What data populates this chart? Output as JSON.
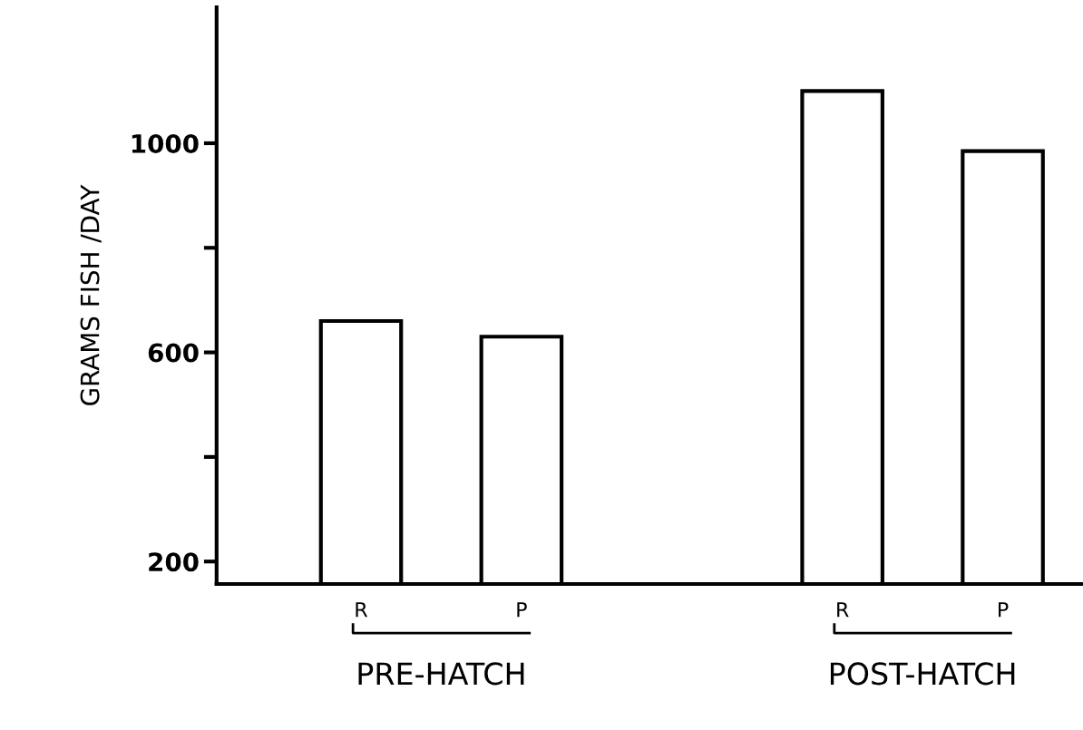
{
  "chart_data": {
    "type": "bar",
    "ylabel": "GRAMS FISH /DAY",
    "categories": [
      "R",
      "P",
      null,
      "R",
      "P"
    ],
    "values": [
      660,
      630,
      null,
      1100,
      985
    ],
    "color": "#ffffff",
    "ylim": [
      157,
      1260
    ],
    "yticks": [
      200,
      {
        "value": 400,
        "label": null
      },
      600,
      {
        "value": 800,
        "label": null
      },
      1000
    ],
    "annotations": [
      "PRE-HATCH",
      "POST-HATCH"
    ],
    "grid": false
  }
}
